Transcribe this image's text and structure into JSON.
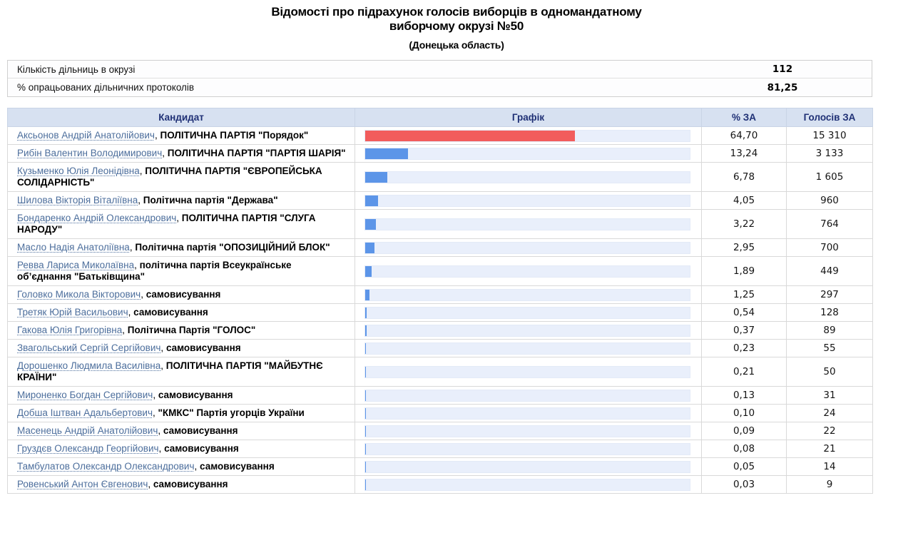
{
  "page": {
    "title_line1": "Відомості про підрахунок голосів виборців в одномандатному",
    "title_line2": "виборчому окрузі №50",
    "subtitle": "(Донецька область)"
  },
  "summary": {
    "rows": [
      {
        "label": "Кількість дільниць в окрузі",
        "value": "112"
      },
      {
        "label": "% опрацьованих дільничних протоколів",
        "value": "81,25"
      }
    ]
  },
  "results": {
    "columns": [
      "Кандидат",
      "Графік",
      "% ЗА",
      "Голосів ЗА"
    ],
    "candidate_party_separator": ", ",
    "rows": [
      {
        "candidate": "Аксьонов Андрій Анатолійович",
        "party": "ПОЛІТИЧНА ПАРТІЯ \"Порядок\"",
        "percent": "64,70",
        "percent_value": 64.7,
        "votes": "15 310",
        "bar": "red"
      },
      {
        "candidate": "Рибін Валентин Володимирович",
        "party": "ПОЛІТИЧНА ПАРТІЯ \"ПАРТІЯ ШАРІЯ\"",
        "percent": "13,24",
        "percent_value": 13.24,
        "votes": "3 133",
        "bar": "blue"
      },
      {
        "candidate": "Кузьменко Юлія Леонідівна",
        "party": "ПОЛІТИЧНА ПАРТІЯ \"ЄВРОПЕЙСЬКА СОЛІДАРНІСТЬ\"",
        "percent": "6,78",
        "percent_value": 6.78,
        "votes": "1 605",
        "bar": "blue"
      },
      {
        "candidate": "Шилова Вікторія Віталіївна",
        "party": "Політична партія \"Держава\"",
        "percent": "4,05",
        "percent_value": 4.05,
        "votes": "960",
        "bar": "blue"
      },
      {
        "candidate": "Бондаренко Андрій Олександрович",
        "party": "ПОЛІТИЧНА ПАРТІЯ \"СЛУГА НАРОДУ\"",
        "percent": "3,22",
        "percent_value": 3.22,
        "votes": "764",
        "bar": "blue"
      },
      {
        "candidate": "Масло Надія Анатоліївна",
        "party": "Політична партія \"ОПОЗИЦІЙНИЙ БЛОК\"",
        "percent": "2,95",
        "percent_value": 2.95,
        "votes": "700",
        "bar": "blue"
      },
      {
        "candidate": "Ревва Лариса Миколаївна",
        "party": "політична партія Всеукраїнське об’єднання \"Батьківщина\"",
        "percent": "1,89",
        "percent_value": 1.89,
        "votes": "449",
        "bar": "blue"
      },
      {
        "candidate": "Головко Микола Вікторович",
        "party": "самовисування",
        "percent": "1,25",
        "percent_value": 1.25,
        "votes": "297",
        "bar": "blue"
      },
      {
        "candidate": "Третяк Юрій Васильович",
        "party": "самовисування",
        "percent": "0,54",
        "percent_value": 0.54,
        "votes": "128",
        "bar": "blue"
      },
      {
        "candidate": "Гакова Юлія Григорівна",
        "party": "Політична Партія \"ГОЛОС\"",
        "percent": "0,37",
        "percent_value": 0.37,
        "votes": "89",
        "bar": "blue"
      },
      {
        "candidate": "Звагольський Сергій Сергійович",
        "party": "самовисування",
        "percent": "0,23",
        "percent_value": 0.23,
        "votes": "55",
        "bar": "blue"
      },
      {
        "candidate": "Дорошенко Людмила Василівна",
        "party": "ПОЛІТИЧНА ПАРТІЯ \"МАЙБУТНЄ КРАЇНИ\"",
        "percent": "0,21",
        "percent_value": 0.21,
        "votes": "50",
        "bar": "blue"
      },
      {
        "candidate": "Мироненко Богдан Сергійович",
        "party": "самовисування",
        "percent": "0,13",
        "percent_value": 0.13,
        "votes": "31",
        "bar": "blue"
      },
      {
        "candidate": "Добша Іштван Адальбертович",
        "party": "\"КМКС\" Партія угорців України",
        "percent": "0,10",
        "percent_value": 0.1,
        "votes": "24",
        "bar": "blue"
      },
      {
        "candidate": "Масенець Андрій Анатолійович",
        "party": "самовисування",
        "percent": "0,09",
        "percent_value": 0.09,
        "votes": "22",
        "bar": "blue"
      },
      {
        "candidate": "Груздєв Олександр Георгійович",
        "party": "самовисування",
        "percent": "0,08",
        "percent_value": 0.08,
        "votes": "21",
        "bar": "blue"
      },
      {
        "candidate": "Тамбулатов Олександр Олександрович",
        "party": "самовисування",
        "percent": "0,05",
        "percent_value": 0.05,
        "votes": "14",
        "bar": "blue"
      },
      {
        "candidate": "Ровенський Антон Євгенович",
        "party": "самовисування",
        "percent": "0,03",
        "percent_value": 0.03,
        "votes": "9",
        "bar": "blue"
      }
    ]
  },
  "colors": {
    "bar_red": "#f25c5c",
    "bar_blue": "#5c95e8",
    "bar_track": "#e9effb",
    "header_bg": "#d7e1f1",
    "header_text": "#1f3075",
    "link": "#4c6e9c"
  }
}
